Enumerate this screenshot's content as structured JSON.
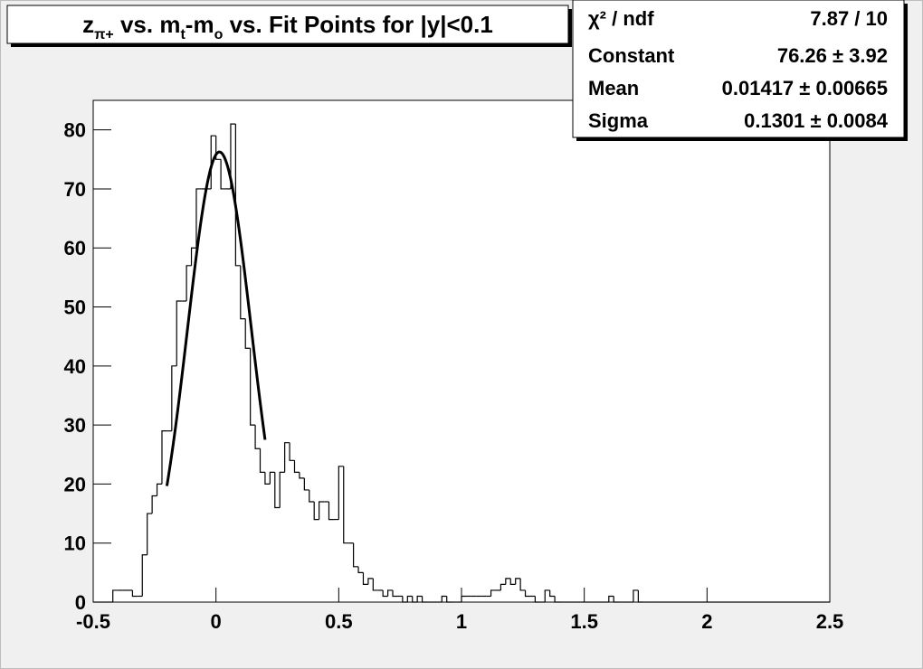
{
  "chart_data": {
    "type": "histogram",
    "title_parts": [
      {
        "text": "z"
      },
      {
        "text": "π+",
        "sub": true
      },
      {
        "text": " vs. m"
      },
      {
        "text": "t",
        "sub": true
      },
      {
        "text": "-m"
      },
      {
        "text": "o",
        "sub": true
      },
      {
        "text": " vs. Fit Points for |y|<0.1"
      }
    ],
    "bins": [
      -0.5,
      -0.48,
      -0.46,
      -0.44,
      -0.42,
      -0.4,
      -0.38,
      -0.36,
      -0.34,
      -0.32,
      -0.3,
      -0.28,
      -0.26,
      -0.24,
      -0.22,
      -0.2,
      -0.18,
      -0.16,
      -0.14,
      -0.12,
      -0.1,
      -0.08,
      -0.06,
      -0.04,
      -0.02,
      0,
      0.02,
      0.04,
      0.06,
      0.08,
      0.1,
      0.12,
      0.14,
      0.16,
      0.18,
      0.2,
      0.22,
      0.24,
      0.26,
      0.28,
      0.3,
      0.32,
      0.34,
      0.36,
      0.38,
      0.4,
      0.42,
      0.44,
      0.46,
      0.48,
      0.5,
      0.52,
      0.54,
      0.56,
      0.58,
      0.6,
      0.62,
      0.64,
      0.66,
      0.68,
      0.7,
      0.72,
      0.74,
      0.76,
      0.78,
      0.8,
      0.82,
      0.84,
      0.86,
      0.88,
      0.9,
      0.92,
      0.94,
      0.96,
      0.98,
      1,
      1.02,
      1.04,
      1.06,
      1.08,
      1.1,
      1.12,
      1.14,
      1.16,
      1.18,
      1.2,
      1.22,
      1.24,
      1.26,
      1.28,
      1.3,
      1.32,
      1.34,
      1.36,
      1.38,
      1.4,
      1.42,
      1.44,
      1.46,
      1.48,
      1.5,
      1.52,
      1.54,
      1.56,
      1.58,
      1.6,
      1.62,
      1.64,
      1.66,
      1.68,
      1.7,
      1.72,
      1.74,
      1.76,
      1.78,
      1.8,
      1.82,
      1.84,
      1.86,
      1.88,
      1.9,
      1.92,
      1.94,
      1.96,
      1.98,
      2,
      2.02,
      2.04,
      2.06,
      2.08,
      2.1,
      2.12,
      2.14,
      2.16,
      2.18,
      2.2,
      2.22,
      2.24,
      2.26,
      2.28,
      2.3,
      2.32,
      2.34,
      2.36,
      2.38,
      2.4,
      2.42,
      2.44,
      2.46,
      2.48,
      2.5
    ],
    "values": [
      0,
      0,
      0,
      0,
      2,
      2,
      2,
      2,
      1,
      1,
      8,
      15,
      18,
      20,
      29,
      29,
      40,
      51,
      51,
      57,
      60,
      70,
      70,
      70,
      79,
      75,
      70,
      70,
      81,
      57,
      48,
      43,
      30,
      26,
      22,
      20,
      22,
      16,
      22,
      27,
      24,
      22,
      21,
      19,
      17,
      14,
      17,
      17,
      14,
      14,
      23,
      10,
      10,
      6,
      5,
      3,
      4,
      2,
      2,
      1,
      2,
      1,
      1,
      0,
      1,
      0,
      1,
      0,
      0,
      0,
      0,
      1,
      0,
      0,
      0,
      1,
      1,
      1,
      1,
      1,
      1,
      2,
      2,
      3,
      4,
      3,
      4,
      2,
      1,
      1,
      0,
      0,
      2,
      1,
      0,
      0,
      0,
      0,
      0,
      0,
      0,
      0,
      0,
      0,
      0,
      1,
      0,
      0,
      0,
      0,
      2,
      0,
      0,
      0,
      0,
      0,
      0,
      0,
      0,
      0,
      0,
      0,
      0,
      0,
      0,
      0,
      0,
      0,
      0,
      0,
      0,
      0,
      0,
      0,
      0,
      0,
      0,
      0,
      0,
      0,
      0,
      0,
      0,
      0,
      0,
      0,
      0,
      0,
      0,
      0
    ],
    "color": "#000000",
    "xlim": [
      -0.5,
      2.5
    ],
    "xticks": [
      -0.5,
      0,
      0.5,
      1,
      1.5,
      2,
      2.5
    ],
    "ylim": [
      0,
      85
    ],
    "yticks": [
      0,
      10,
      20,
      30,
      40,
      50,
      60,
      70,
      80
    ],
    "fit": {
      "function": "gaus",
      "range": [
        -0.2,
        0.2
      ],
      "color": "#000000"
    },
    "stats": [
      {
        "name": "χ² / ndf",
        "label": "7.87 / 10"
      },
      {
        "name": "Constant",
        "value": 76.26,
        "error": 3.92,
        "label": "76.26 ± 3.92"
      },
      {
        "name": "Mean",
        "value": 0.01417,
        "error": 0.00665,
        "label": "0.01417 ± 0.00665"
      },
      {
        "name": "Sigma",
        "value": 0.1301,
        "error": 0.0084,
        "label": "0.1301 ± 0.0084"
      }
    ]
  }
}
